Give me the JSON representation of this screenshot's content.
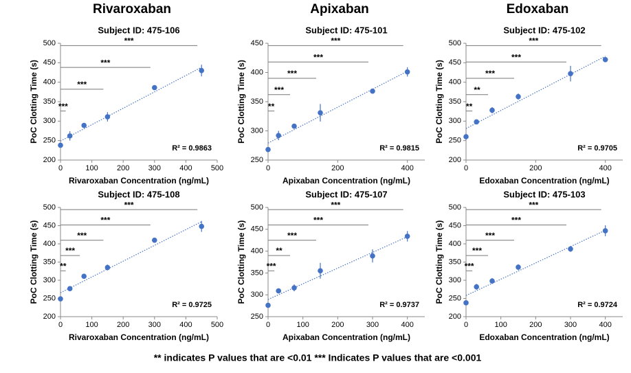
{
  "column_titles": [
    "Rivaroxaban",
    "Apixaban",
    "Edoxaban"
  ],
  "footnote": "** indicates P values that are <0.01   *** Indicates P values that are <0.001",
  "chart_data": [
    {
      "type": "scatter",
      "title": "Subject ID: 475-106",
      "x_label": "Rivaroxaban Concentration (ng/mL)",
      "y_label": "PoC Clotting Time (s)",
      "x": [
        0,
        30,
        75,
        150,
        300,
        450
      ],
      "values": [
        238,
        262,
        289,
        311,
        386,
        430
      ],
      "errors": [
        0,
        12,
        0,
        12,
        0,
        15
      ],
      "xlim": [
        0,
        500
      ],
      "xticks": [
        0,
        100,
        200,
        300,
        400,
        500
      ],
      "ylim": [
        200,
        500
      ],
      "yticks": [
        200,
        250,
        300,
        350,
        400,
        450,
        500
      ],
      "color": "#4472c4",
      "r2_label": "R² = 0.9863",
      "comparisons": [
        {
          "label": "***",
          "x": 30
        },
        {
          "label": "***",
          "x": 150
        },
        {
          "label": "***",
          "x": 300
        },
        {
          "label": "***",
          "x": 450
        }
      ]
    },
    {
      "type": "scatter",
      "title": "Subject ID: 475-101",
      "x_label": "Apixaban Concentration (ng/mL)",
      "y_label": "PoC Clotting Time (s)",
      "x": [
        0,
        30,
        75,
        150,
        300,
        400
      ],
      "values": [
        268,
        292,
        308,
        331,
        368,
        401
      ],
      "errors": [
        0,
        8,
        0,
        15,
        0,
        8
      ],
      "xlim": [
        0,
        450
      ],
      "xticks": [
        0,
        200,
        400
      ],
      "ylim": [
        250,
        450
      ],
      "yticks": [
        250,
        300,
        350,
        400,
        450
      ],
      "color": "#4472c4",
      "r2_label": "R² = 0.9815",
      "comparisons": [
        {
          "label": "**",
          "x": 30
        },
        {
          "label": "***",
          "x": 75
        },
        {
          "label": "***",
          "x": 150
        },
        {
          "label": "***",
          "x": 300
        },
        {
          "label": "***",
          "x": 400
        }
      ]
    },
    {
      "type": "scatter",
      "title": "Subject ID: 475-102",
      "x_label": "Edoxaban Concentration (ng/mL)",
      "y_label": "PoC Clotting Time (s)",
      "x": [
        0,
        30,
        75,
        150,
        300,
        400
      ],
      "values": [
        260,
        298,
        328,
        363,
        422,
        458
      ],
      "errors": [
        8,
        6,
        8,
        8,
        20,
        5
      ],
      "xlim": [
        0,
        450
      ],
      "xticks": [
        0,
        200,
        400
      ],
      "ylim": [
        200,
        500
      ],
      "yticks": [
        200,
        250,
        300,
        350,
        400,
        450,
        500
      ],
      "color": "#4472c4",
      "r2_label": "R² = 0.9705",
      "comparisons": [
        {
          "label": "**",
          "x": 30
        },
        {
          "label": "**",
          "x": 75
        },
        {
          "label": "***",
          "x": 150
        },
        {
          "label": "***",
          "x": 300
        },
        {
          "label": "***",
          "x": 400
        }
      ]
    },
    {
      "type": "scatter",
      "title": "Subject ID: 475-108",
      "x_label": "Rivaroxaban Concentration (ng/mL)",
      "y_label": "PoC Clotting Time (s)",
      "x": [
        0,
        30,
        75,
        150,
        300,
        450
      ],
      "values": [
        249,
        277,
        311,
        335,
        410,
        448
      ],
      "errors": [
        0,
        5,
        0,
        8,
        5,
        15
      ],
      "xlim": [
        0,
        500
      ],
      "xticks": [
        0,
        100,
        200,
        300,
        400,
        500
      ],
      "ylim": [
        200,
        500
      ],
      "yticks": [
        200,
        250,
        300,
        350,
        400,
        450,
        500
      ],
      "color": "#4472c4",
      "r2_label": "R² = 0.9725",
      "comparisons": [
        {
          "label": "**",
          "x": 30
        },
        {
          "label": "***",
          "x": 75
        },
        {
          "label": "***",
          "x": 150
        },
        {
          "label": "***",
          "x": 300
        },
        {
          "label": "***",
          "x": 450
        }
      ]
    },
    {
      "type": "scatter",
      "title": "Subject ID: 475-107",
      "x_label": "Apixaban Concentration (ng/mL)",
      "y_label": "PoC Clotting Time (s)",
      "x": [
        0,
        30,
        75,
        150,
        300,
        400
      ],
      "values": [
        276,
        309,
        316,
        355,
        389,
        434
      ],
      "errors": [
        0,
        0,
        8,
        18,
        15,
        12
      ],
      "xlim": [
        0,
        450
      ],
      "xticks": [
        0,
        100,
        200,
        300,
        400
      ],
      "ylim": [
        250,
        500
      ],
      "yticks": [
        250,
        300,
        350,
        400,
        450,
        500
      ],
      "color": "#4472c4",
      "r2_label": "R² = 0.9737",
      "comparisons": [
        {
          "label": "***",
          "x": 30
        },
        {
          "label": "**",
          "x": 75
        },
        {
          "label": "***",
          "x": 150
        },
        {
          "label": "***",
          "x": 300
        },
        {
          "label": "***",
          "x": 400
        }
      ]
    },
    {
      "type": "scatter",
      "title": "Subject ID: 475-103",
      "x_label": "Edoxaban Concentration (ng/mL)",
      "y_label": "PoC Clotting Time (s)",
      "x": [
        0,
        30,
        75,
        150,
        300,
        400
      ],
      "values": [
        238,
        282,
        298,
        336,
        386,
        436
      ],
      "errors": [
        0,
        8,
        8,
        8,
        8,
        15
      ],
      "xlim": [
        0,
        450
      ],
      "xticks": [
        0,
        100,
        200,
        300,
        400
      ],
      "ylim": [
        200,
        500
      ],
      "yticks": [
        200,
        250,
        300,
        350,
        400,
        450,
        500
      ],
      "color": "#4472c4",
      "r2_label": "R² = 0.9724",
      "comparisons": [
        {
          "label": "***",
          "x": 30
        },
        {
          "label": "***",
          "x": 75
        },
        {
          "label": "***",
          "x": 150
        },
        {
          "label": "***",
          "x": 300
        },
        {
          "label": "***",
          "x": 400
        }
      ]
    }
  ]
}
